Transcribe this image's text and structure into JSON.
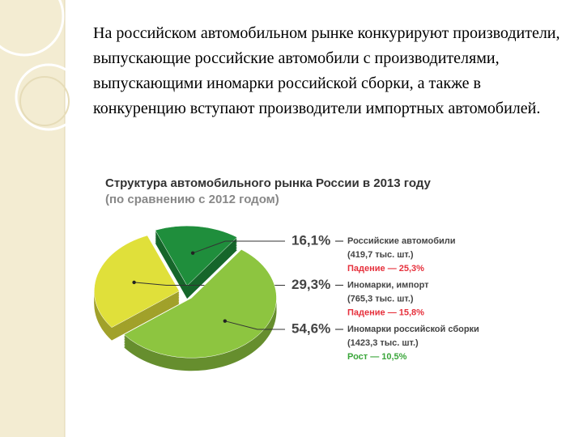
{
  "text": "На российском автомобильном рынке конкурируют производители, выпускающие  российские автомобили с производителями, выпускающими иномарки российской сборки, а также в конкуренцию вступают производители импортных автомобилей.",
  "chart_data": {
    "type": "pie",
    "title": "Структура автомобильного рынка России в 2013 году",
    "subtitle": "(по сравнению с 2012 годом)",
    "categories": [
      "Российские автомобили",
      "Иномарки, импорт",
      "Иномарки российской сборки"
    ],
    "values": [
      16.1,
      29.3,
      54.6
    ],
    "value_labels": [
      "16,1%",
      "29,3%",
      "54,6%"
    ],
    "colors": [
      "#1f8e3c",
      "#e0e03a",
      "#8dc540"
    ],
    "units": [
      "(419,7 тыс. шт.)",
      "(765,3 тыс. шт.)",
      "(1423,3 тыс. шт.)"
    ],
    "changes": [
      "Падение — 25,3%",
      "Падение — 15,8%",
      "Рост — 10,5%"
    ],
    "change_colors": [
      "#e6303c",
      "#e6303c",
      "#3aa63a"
    ]
  }
}
